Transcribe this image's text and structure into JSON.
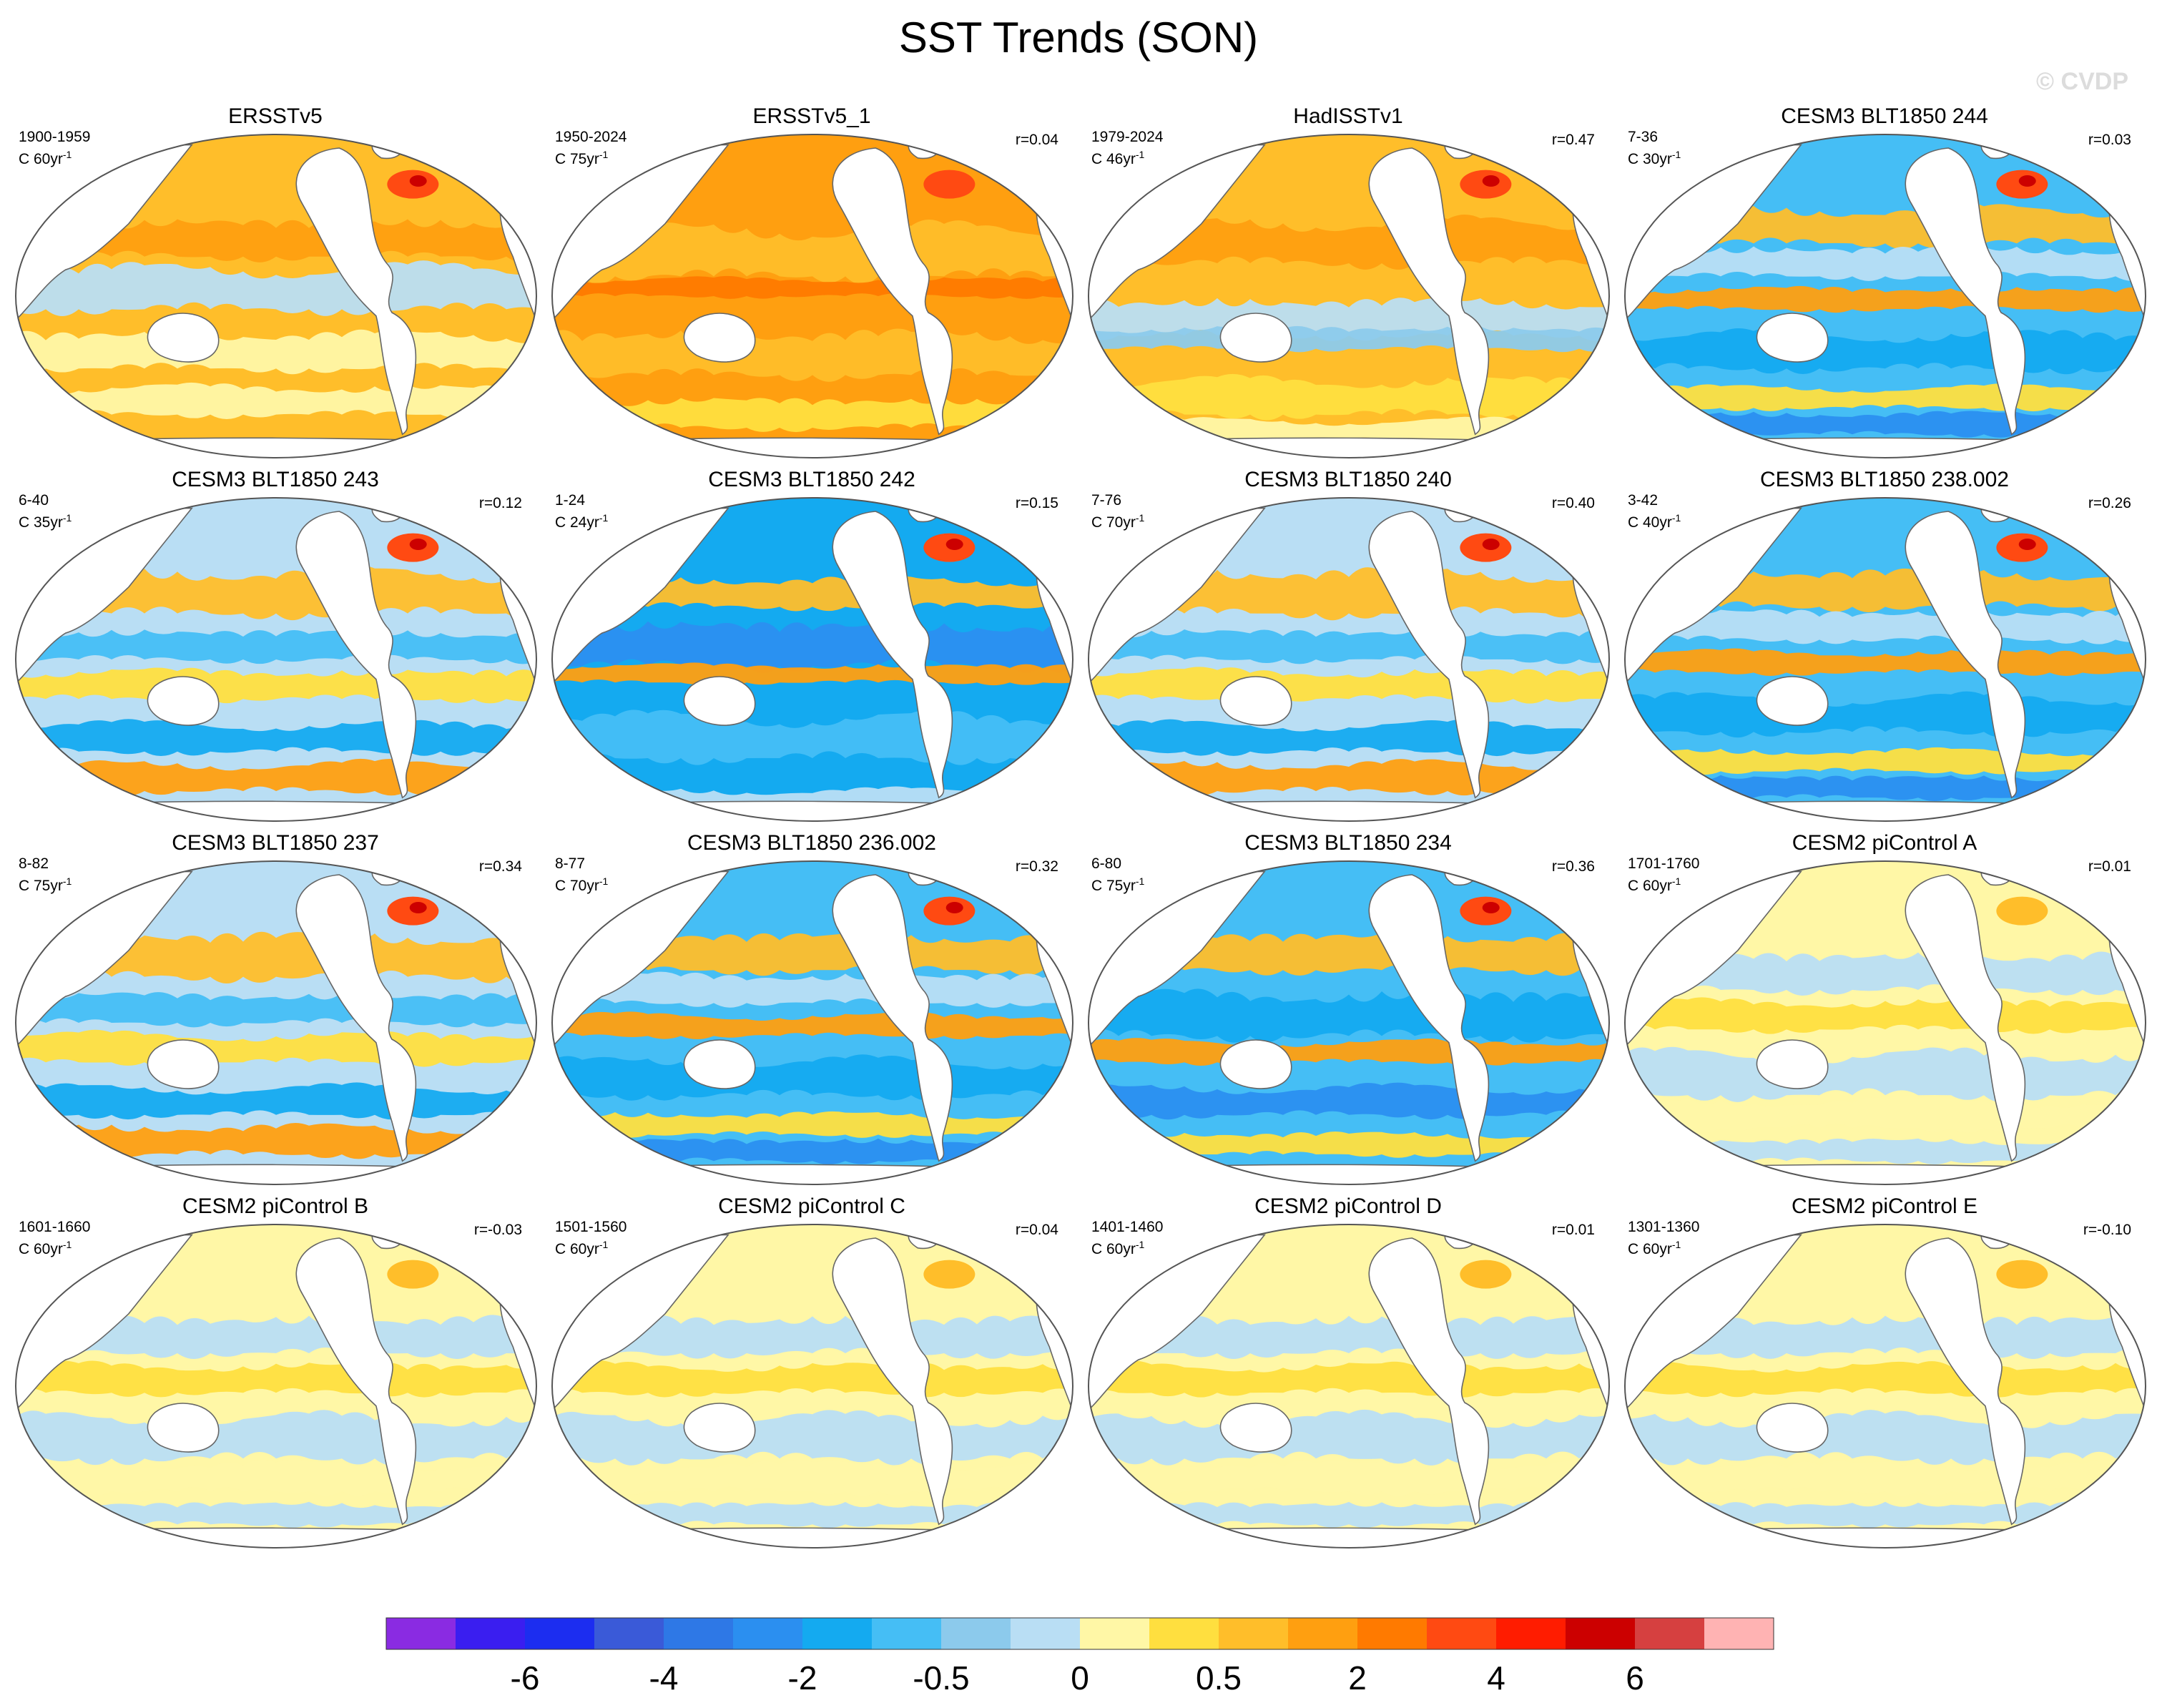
{
  "title": "SST Trends (SON)",
  "watermark": "© CVDP",
  "panels": [
    {
      "title": "ERSSTv5",
      "period": "1900-1959",
      "units_prefix": "C 60yr",
      "units_exp": "-1",
      "corr": "",
      "pattern": "warm_obs"
    },
    {
      "title": "ERSSTv5_1",
      "period": "1950-2024",
      "units_prefix": "C 75yr",
      "units_exp": "-1",
      "corr": "r=0.04",
      "pattern": "warm_strong"
    },
    {
      "title": "HadISSTv1",
      "period": "1979-2024",
      "units_prefix": "C 46yr",
      "units_exp": "-1",
      "corr": "r=0.47",
      "pattern": "warm_mixed"
    },
    {
      "title": "CESM3 BLT1850 244",
      "period": "7-36",
      "units_prefix": "C 30yr",
      "units_exp": "-1",
      "corr": "r=0.03",
      "pattern": "cool_mixed"
    },
    {
      "title": "CESM3 BLT1850 243",
      "period": "6-40",
      "units_prefix": "C 35yr",
      "units_exp": "-1",
      "corr": "r=0.12",
      "pattern": "mixed"
    },
    {
      "title": "CESM3 BLT1850 242",
      "period": "1-24",
      "units_prefix": "C 24yr",
      "units_exp": "-1",
      "corr": "r=0.15",
      "pattern": "cool_strong"
    },
    {
      "title": "CESM3 BLT1850 240",
      "period": "7-76",
      "units_prefix": "C 70yr",
      "units_exp": "-1",
      "corr": "r=0.40",
      "pattern": "mixed"
    },
    {
      "title": "CESM3 BLT1850 238.002",
      "period": "3-42",
      "units_prefix": "C 40yr",
      "units_exp": "-1",
      "corr": "r=0.26",
      "pattern": "cool_mixed"
    },
    {
      "title": "CESM3 BLT1850 237",
      "period": "8-82",
      "units_prefix": "C 75yr",
      "units_exp": "-1",
      "corr": "r=0.34",
      "pattern": "mixed"
    },
    {
      "title": "CESM3 BLT1850 236.002",
      "period": "8-77",
      "units_prefix": "C 70yr",
      "units_exp": "-1",
      "corr": "r=0.32",
      "pattern": "cool_mixed"
    },
    {
      "title": "CESM3 BLT1850 234",
      "period": "6-80",
      "units_prefix": "C 75yr",
      "units_exp": "-1",
      "corr": "r=0.36",
      "pattern": "cool_strong2"
    },
    {
      "title": "CESM2 piControl A",
      "period": "1701-1760",
      "units_prefix": "C 60yr",
      "units_exp": "-1",
      "corr": "r=0.01",
      "pattern": "weak"
    },
    {
      "title": "CESM2 piControl B",
      "period": "1601-1660",
      "units_prefix": "C 60yr",
      "units_exp": "-1",
      "corr": "r=-0.03",
      "pattern": "weak"
    },
    {
      "title": "CESM2 piControl C",
      "period": "1501-1560",
      "units_prefix": "C 60yr",
      "units_exp": "-1",
      "corr": "r=0.04",
      "pattern": "weak"
    },
    {
      "title": "CESM2 piControl D",
      "period": "1401-1460",
      "units_prefix": "C 60yr",
      "units_exp": "-1",
      "corr": "r=0.01",
      "pattern": "weak"
    },
    {
      "title": "CESM2 piControl E",
      "period": "1301-1360",
      "units_prefix": "C 60yr",
      "units_exp": "-1",
      "corr": "r=-0.10",
      "pattern": "weak"
    }
  ],
  "colorbar": {
    "colors": [
      "#8a2be2",
      "#3a1ef0",
      "#1c2df0",
      "#3a5ad8",
      "#2e78e6",
      "#2b8ff0",
      "#14aaf0",
      "#45bef5",
      "#8ccaec",
      "#b9def4",
      "#fff7a6",
      "#ffdf3f",
      "#ffbe2a",
      "#ff9f10",
      "#ff7a00",
      "#ff4a12",
      "#ff1c00",
      "#cc0000",
      "#d64040",
      "#ffb3b3"
    ],
    "labels": [
      "-6",
      "-4",
      "-2",
      "-0.5",
      "0",
      "0.5",
      "2",
      "4",
      "6"
    ]
  }
}
